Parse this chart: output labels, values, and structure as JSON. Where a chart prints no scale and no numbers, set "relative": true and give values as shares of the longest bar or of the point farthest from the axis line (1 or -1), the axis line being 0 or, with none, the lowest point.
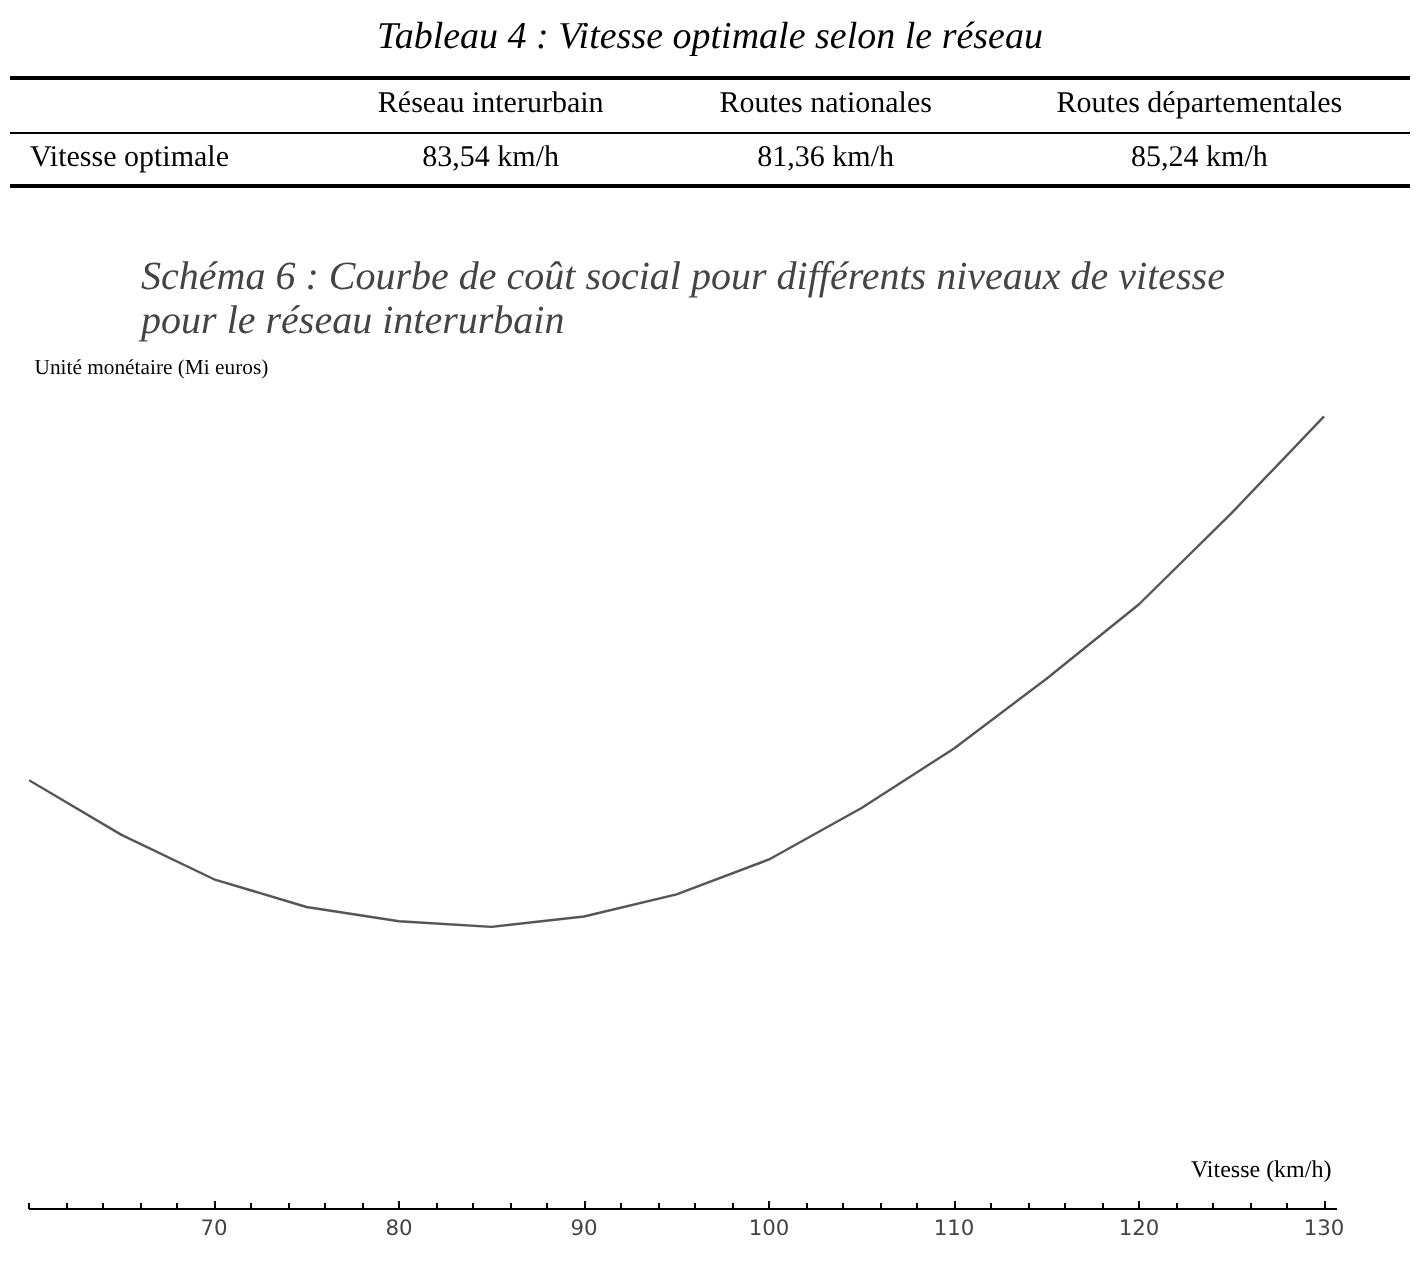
{
  "chart_data": [
    {
      "type": "other",
      "title": "Tableau 4 : Vitesse optimale selon le réseau",
      "categories": [
        "Réseau interurbain",
        "Routes nationales",
        "Routes départementales"
      ],
      "annotations": [
        "Vitesse optimale",
        "83,54 km/h",
        "81,36 km/h",
        "85,24 km/h"
      ]
    },
    {
      "type": "line",
      "title": "Schéma 6 : Courbe de coût social pour différents niveaux de vitesse\npour le réseau interurbain",
      "xlabel": "Vitesse (km/h)",
      "ylabel": "Unité monétaire (Mi euros)",
      "relative": true,
      "x": [
        60,
        65,
        70,
        75,
        80,
        85,
        90,
        95,
        100,
        105,
        110,
        115,
        120,
        125,
        130
      ],
      "series": [
        {
          "color": "#555555",
          "values": [
            0.541,
            0.472,
            0.416,
            0.381,
            0.363,
            0.356,
            0.369,
            0.397,
            0.441,
            0.506,
            0.581,
            0.669,
            0.763,
            0.878,
            1.0
          ]
        }
      ],
      "xlim": [
        60,
        130.7
      ],
      "xticks": [
        70,
        80,
        90,
        100,
        110,
        120,
        130
      ],
      "grid": false,
      "marker": "none",
      "line_style": "solid"
    }
  ]
}
